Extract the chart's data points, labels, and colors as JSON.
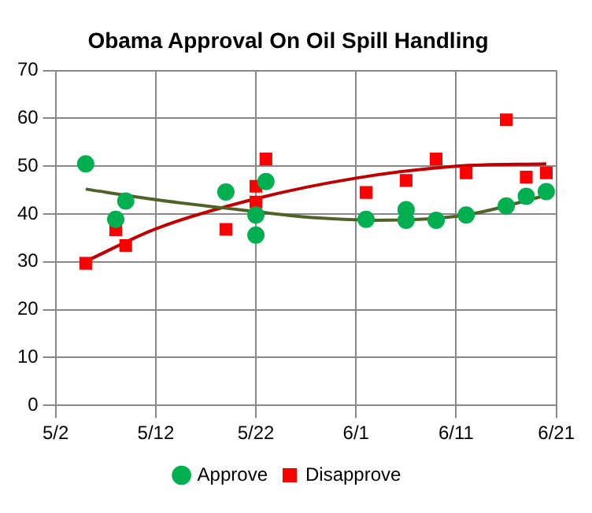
{
  "chart_data": {
    "type": "scatter",
    "title": "Obama Approval On Oil Spill Handling",
    "xlim": [
      "--05-02",
      "--06-21"
    ],
    "xticks": [
      {
        "value": "--05-02",
        "label": "5/2"
      },
      {
        "value": "--05-12",
        "label": "5/12"
      },
      {
        "value": "--05-22",
        "label": "5/22"
      },
      {
        "value": "--06-01",
        "label": "6/1"
      },
      {
        "value": "--06-11",
        "label": "6/11"
      },
      {
        "value": "--06-21",
        "label": "6/21"
      }
    ],
    "ylim": [
      0,
      70
    ],
    "yticks": [
      0,
      10,
      20,
      30,
      40,
      50,
      60,
      70
    ],
    "grid": true,
    "legend": "bottom",
    "series": [
      {
        "name": "Approve",
        "color": "#00b050",
        "marker": "circle",
        "x": [
          "--05-05",
          "--05-08",
          "--05-09",
          "--05-19",
          "--05-22",
          "--05-22",
          "--05-23",
          "--06-02",
          "--06-06",
          "--06-06",
          "--06-09",
          "--06-12",
          "--06-16",
          "--06-18",
          "--06-20"
        ],
        "values": [
          50.5,
          38.9,
          42.7,
          44.6,
          39.8,
          35.6,
          46.8,
          38.9,
          40.9,
          38.7,
          38.7,
          39.8,
          41.7,
          43.7,
          44.7
        ]
      },
      {
        "name": "Disapprove",
        "color": "#ff0000",
        "marker": "square",
        "x": [
          "--05-05",
          "--05-08",
          "--05-09",
          "--05-19",
          "--05-22",
          "--05-22",
          "--05-23",
          "--06-02",
          "--06-06",
          "--06-09",
          "--06-12",
          "--06-16",
          "--06-18",
          "--06-20"
        ],
        "values": [
          29.7,
          36.7,
          33.4,
          36.8,
          45.8,
          42.5,
          51.5,
          44.5,
          47,
          51.5,
          48.6,
          59.7,
          47.7,
          48.6
        ]
      },
      {
        "type": "line",
        "color": "#4f6228",
        "marker": "none",
        "x": [
          "--05-05",
          "--05-12",
          "--05-22",
          "--05-28",
          "--06-03",
          "--06-12",
          "--06-20"
        ],
        "values": [
          45.2,
          43,
          40.5,
          39.2,
          38.7,
          39.8,
          43.9
        ]
      },
      {
        "type": "line",
        "color": "#c00000",
        "marker": "none",
        "x": [
          "--05-05",
          "--05-12",
          "--05-22",
          "--06-01",
          "--06-11",
          "--06-20"
        ],
        "values": [
          30.1,
          36.9,
          43.2,
          47.5,
          50,
          50.5
        ]
      }
    ]
  }
}
